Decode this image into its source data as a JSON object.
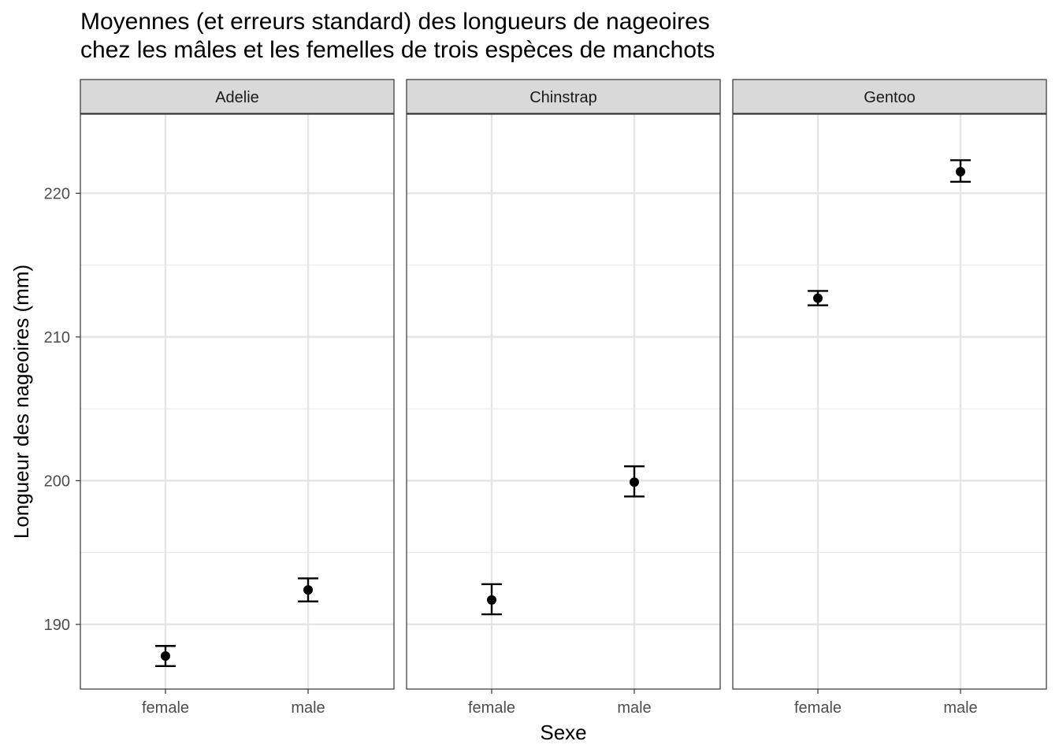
{
  "title_line1": "Moyennes (et erreurs standard) des longueurs de nageoires",
  "title_line2": "chez les mâles et les femelles de trois espèces de manchots",
  "chart_data": {
    "type": "scatter",
    "subtype": "point with error bars (mean ± standard error), faceted",
    "xlabel": "Sexe",
    "ylabel": "Longueur des nageoires (mm)",
    "ylim": [
      185.5,
      225.5
    ],
    "y_ticks": [
      190,
      200,
      210,
      220
    ],
    "grid": true,
    "categories": [
      "female",
      "male"
    ],
    "facets": [
      {
        "name": "Adelie",
        "points": [
          {
            "x": "female",
            "mean": 187.8,
            "se_low": 187.1,
            "se_high": 188.5
          },
          {
            "x": "male",
            "mean": 192.4,
            "se_low": 191.6,
            "se_high": 193.2
          }
        ]
      },
      {
        "name": "Chinstrap",
        "points": [
          {
            "x": "female",
            "mean": 191.7,
            "se_low": 190.7,
            "se_high": 192.8
          },
          {
            "x": "male",
            "mean": 199.9,
            "se_low": 198.9,
            "se_high": 201.0
          }
        ]
      },
      {
        "name": "Gentoo",
        "points": [
          {
            "x": "female",
            "mean": 212.7,
            "se_low": 212.2,
            "se_high": 213.2
          },
          {
            "x": "male",
            "mean": 221.5,
            "se_low": 220.8,
            "se_high": 222.3
          }
        ]
      }
    ]
  }
}
